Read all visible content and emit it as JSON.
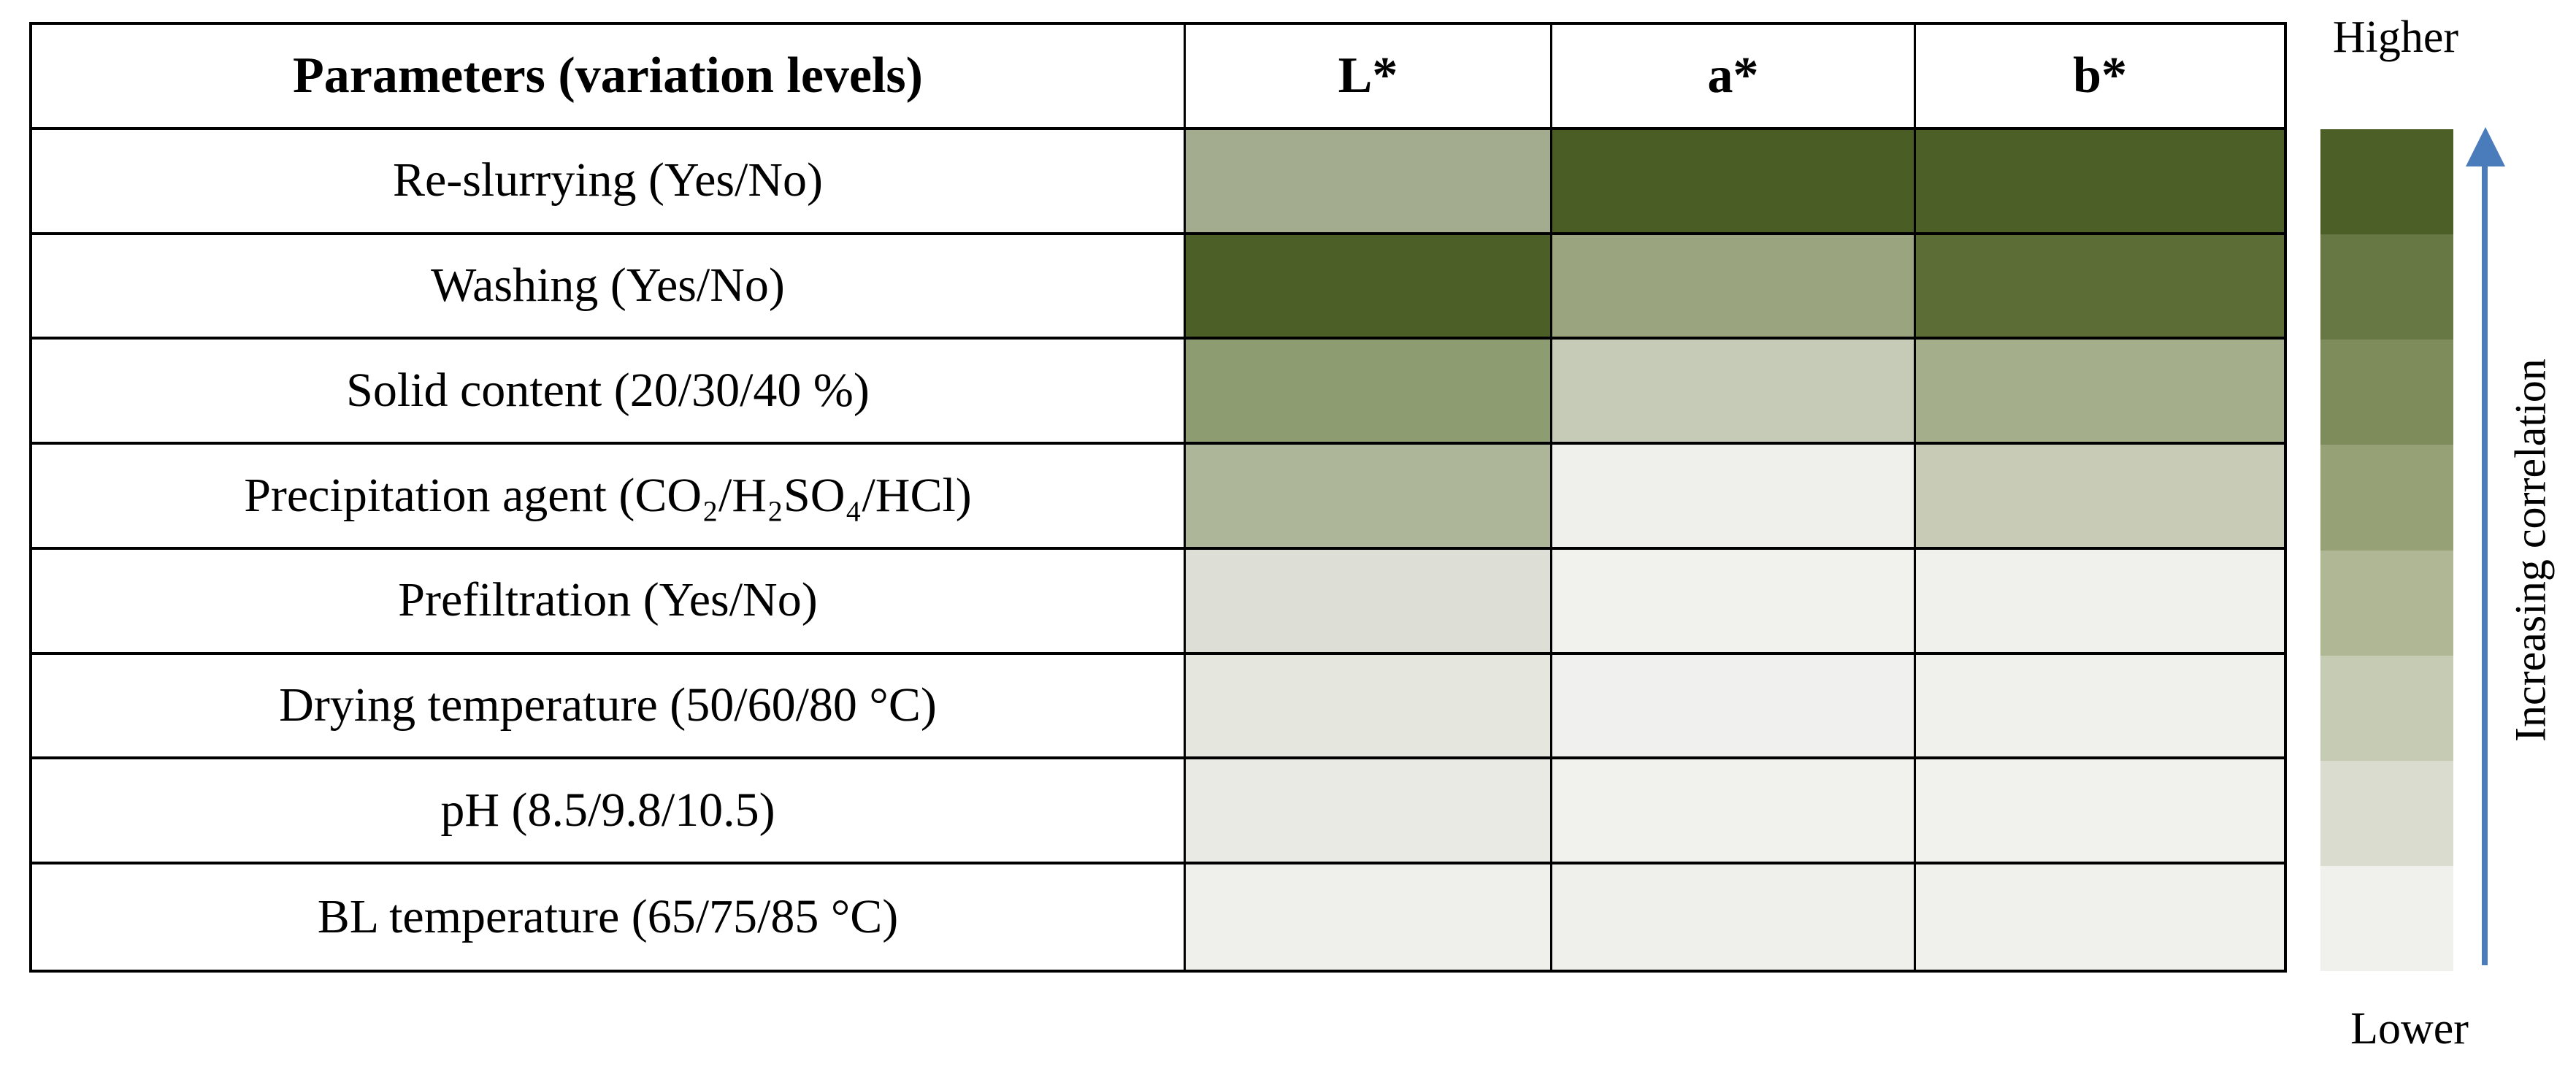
{
  "table": {
    "header": {
      "parameters_label": "Parameters (variation levels)",
      "columns": [
        "L*",
        "a*",
        "b*"
      ]
    },
    "rows": [
      {
        "label": "Re-slurrying (Yes/No)",
        "colors": {
          "L": "#A3AC8E",
          "a": "#4A5D24",
          "b": "#4C5F26"
        }
      },
      {
        "label": "Washing (Yes/No)",
        "colors": {
          "L": "#4C5F26",
          "a": "#9AA47E",
          "b": "#5C6D35"
        }
      },
      {
        "label": "Solid content (20/30/40 %)",
        "colors": {
          "L": "#8E9C72",
          "a": "#C6CBB7",
          "b": "#A5AE8B"
        }
      },
      {
        "label": "Precipitation agent (CO₂/H₂SO₄/HCl)",
        "colors": {
          "L": "#AEB699",
          "a": "#EFEFEB",
          "b": "#C8CCB7"
        }
      },
      {
        "label": "Prefiltration (Yes/No)",
        "colors": {
          "L": "#DDDFD6",
          "a": "#F1F1EE",
          "b": "#F0F0ED"
        }
      },
      {
        "label": "Drying temperature (50/60/80 °C)",
        "colors": {
          "L": "#E5E6DE",
          "a": "#F0F1EE",
          "b": "#F0F0ED"
        }
      },
      {
        "label": "pH (8.5/9.8/10.5)",
        "colors": {
          "L": "#E9EAE4",
          "a": "#F1F1EE",
          "b": "#F1F1EE"
        }
      },
      {
        "label": "BL temperature (65/75/85 °C)",
        "colors": {
          "L": "#EFEFEC",
          "a": "#EFEFEB",
          "b": "#F0F0ED"
        }
      }
    ]
  },
  "legend": {
    "higher_label": "Higher",
    "lower_label": "Lower",
    "axis_label": "Increasing correlation",
    "arrow_color": "#4A7CBB",
    "segments_top_to_bottom": [
      "#4C5F26",
      "#687845",
      "#7E8C5C",
      "#97A176",
      "#AFB795",
      "#C6CBB3",
      "#D9DCCF",
      "#F0F1ED"
    ]
  },
  "chart_data": {
    "type": "heatmap",
    "title": "Correlation of process parameters with color coordinates L*, a*, b*",
    "columns": [
      "L*",
      "a*",
      "b*"
    ],
    "rows": [
      "Re-slurrying (Yes/No)",
      "Washing (Yes/No)",
      "Solid content (20/30/40 %)",
      "Precipitation agent (CO₂/H₂SO₄/HCl)",
      "Prefiltration (Yes/No)",
      "Drying temperature (50/60/80 °C)",
      "pH (8.5/9.8/10.5)",
      "BL temperature (65/75/85 °C)"
    ],
    "values_level_1_lowest_8_highest": [
      [
        4,
        8,
        8
      ],
      [
        8,
        5,
        7
      ],
      [
        5,
        3,
        4
      ],
      [
        4,
        1,
        3
      ],
      [
        2,
        1,
        1
      ],
      [
        2,
        1,
        1
      ],
      [
        1,
        1,
        1
      ],
      [
        1,
        1,
        1
      ]
    ],
    "cell_colors": [
      [
        "#A3AC8E",
        "#4A5D24",
        "#4C5F26"
      ],
      [
        "#4C5F26",
        "#9AA47E",
        "#5C6D35"
      ],
      [
        "#8E9C72",
        "#C6CBB7",
        "#A5AE8B"
      ],
      [
        "#AEB699",
        "#EFEFEB",
        "#C8CCB7"
      ],
      [
        "#DDDFD6",
        "#F1F1EE",
        "#F0F0ED"
      ],
      [
        "#E5E6DE",
        "#F0F1EE",
        "#F0F0ED"
      ],
      [
        "#E9EAE4",
        "#F1F1EE",
        "#F1F1EE"
      ],
      [
        "#EFEFEC",
        "#EFEFEB",
        "#F0F0ED"
      ]
    ],
    "legend": {
      "orientation": "vertical",
      "top": "Higher",
      "bottom": "Lower",
      "axis_label": "Increasing correlation",
      "colors_top_to_bottom": [
        "#4C5F26",
        "#687845",
        "#7E8C5C",
        "#97A176",
        "#AFB795",
        "#C6CBB3",
        "#D9DCCF",
        "#F0F1ED"
      ]
    },
    "grid": true,
    "legend_position": "right"
  }
}
